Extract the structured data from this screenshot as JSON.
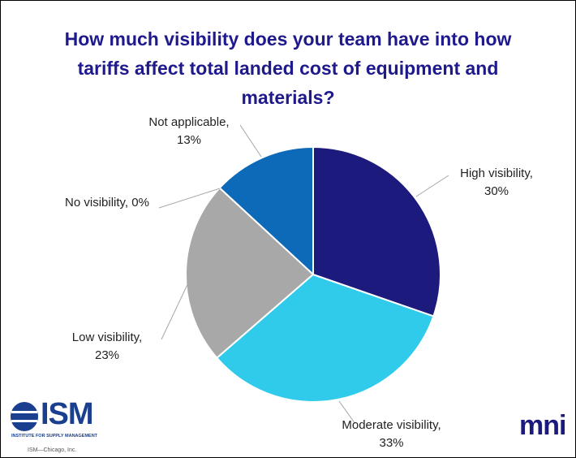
{
  "chart_data": {
    "type": "pie",
    "title": "How much visibility does your team have into how tariffs affect total landed cost of equipment and materials?",
    "categories": [
      "High visibility,",
      "Moderate visibility,",
      "Low visibility,",
      "No visibility,",
      "Not applicable,"
    ],
    "values": [
      30,
      33,
      23,
      0,
      13
    ],
    "value_labels": [
      "30%",
      "33%",
      "23%",
      "0%",
      "13%"
    ],
    "colors": [
      "#1c1a7c",
      "#30cbea",
      "#a8a8a8",
      "#7f7f7f",
      "#0d6ab8"
    ]
  },
  "logos": {
    "ism": "ISM",
    "ism_subtitle": "INSTITUTE FOR SUPPLY MANAGEMENT",
    "ism_copyright": "ISM—Chicago, Inc.",
    "mni": "mni"
  }
}
